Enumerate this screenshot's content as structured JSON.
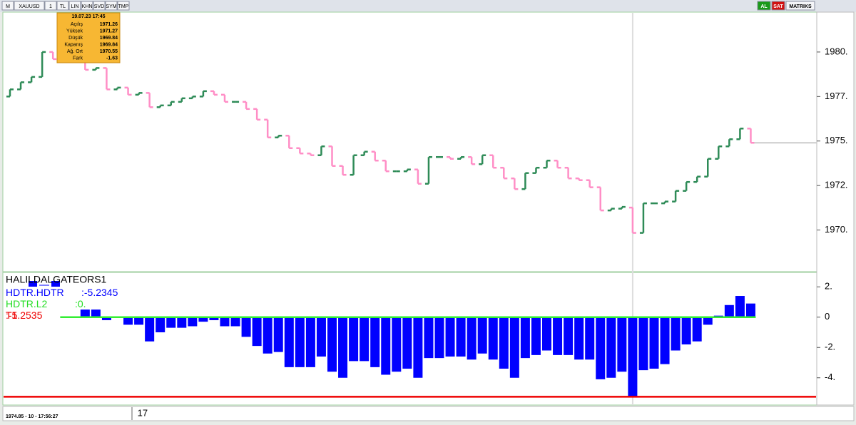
{
  "toolbar": {
    "left": [
      "M",
      "XAUUSD",
      "1",
      "TL",
      "LIN",
      "KHN",
      "SVD",
      "SYM",
      "TMP"
    ],
    "right": [
      "AL",
      "SAT",
      "MATRIKS"
    ]
  },
  "tooltip": {
    "date": "19.07.23 17:45",
    "rows": [
      [
        "Açılış",
        "1971.26"
      ],
      [
        "Yüksek",
        "1971.27"
      ],
      [
        "Düşük",
        "1969.84"
      ],
      [
        "Kapanış",
        "1969.84"
      ],
      [
        "Ağ. Ort",
        "1970.55"
      ],
      [
        "Fark",
        "-1.63"
      ]
    ]
  },
  "status": "1974.85 - 10 - 17:56:27",
  "chart_data": [
    {
      "type": "ohlc",
      "up_color": "#2e8b57",
      "down_color": "#ff8ec6",
      "categories": [
        null,
        null,
        null,
        null,
        null,
        null,
        null,
        null,
        null,
        null,
        null,
        null,
        "17",
        null,
        null,
        null,
        null,
        null,
        null,
        null,
        null,
        null,
        null,
        null,
        null,
        null,
        null,
        null,
        null,
        null,
        null,
        null,
        null,
        null,
        null,
        null,
        null,
        null,
        null,
        null,
        null,
        null,
        null,
        null,
        null,
        null,
        null,
        null,
        null,
        null,
        null,
        null,
        null,
        null,
        null,
        null,
        null,
        null,
        null,
        null,
        null,
        null,
        null,
        null,
        null,
        null,
        null,
        null,
        null,
        null
      ],
      "open": [
        1977.5,
        1977.9,
        1978.3,
        1978.6,
        1980.0,
        1979.6,
        1979.7,
        1979.8,
        1979.0,
        1979.1,
        1977.9,
        1978.0,
        1977.6,
        1977.7,
        1976.9,
        1977.0,
        1977.2,
        1977.4,
        1977.5,
        1977.8,
        1977.6,
        1977.2,
        1977.2,
        1976.8,
        1976.2,
        1975.2,
        1975.3,
        1974.6,
        1974.3,
        1974.2,
        1974.7,
        1973.6,
        1973.1,
        1974.2,
        1974.4,
        1973.9,
        1973.3,
        1973.3,
        1973.4,
        1972.6,
        1974.1,
        1974.1,
        1974.0,
        1974.1,
        1973.7,
        1974.2,
        1973.5,
        1972.9,
        1972.3,
        1973.2,
        1973.5,
        1973.9,
        1973.5,
        1972.9,
        1972.8,
        1972.4,
        1971.1,
        1971.2,
        1971.26,
        1969.84,
        1971.5,
        1971.5,
        1971.6,
        1972.2,
        1972.7,
        1973.0,
        1974.0,
        1974.7,
        1975.1,
        1975.7
      ],
      "close": [
        1977.9,
        1978.3,
        1978.6,
        1980.0,
        1979.6,
        1979.7,
        1979.8,
        1979.0,
        1979.1,
        1977.9,
        1978.0,
        1977.6,
        1977.7,
        1976.9,
        1977.0,
        1977.2,
        1977.4,
        1977.5,
        1977.8,
        1977.6,
        1977.2,
        1977.2,
        1976.8,
        1976.2,
        1975.2,
        1975.3,
        1974.6,
        1974.3,
        1974.2,
        1974.7,
        1973.6,
        1973.1,
        1974.2,
        1974.4,
        1973.9,
        1973.3,
        1973.3,
        1973.4,
        1972.6,
        1974.1,
        1974.1,
        1974.0,
        1974.1,
        1973.7,
        1974.2,
        1973.5,
        1972.9,
        1972.3,
        1973.2,
        1973.5,
        1973.9,
        1973.5,
        1972.9,
        1972.8,
        1972.4,
        1971.1,
        1971.2,
        1971.3,
        1969.84,
        1971.5,
        1971.5,
        1971.6,
        1972.2,
        1972.7,
        1973.0,
        1974.0,
        1974.7,
        1975.1,
        1975.7,
        1974.9
      ],
      "ylim": [
        1967.7,
        1982.2
      ],
      "yticks": [
        {
          "value": 1970,
          "label": "1970."
        },
        {
          "value": 1972.5,
          "label": "1972."
        },
        {
          "value": 1975,
          "label": "1975."
        },
        {
          "value": 1977.5,
          "label": "1977."
        },
        {
          "value": 1980,
          "label": "1980."
        }
      ]
    },
    {
      "type": "bar",
      "title": "HALILDALGATEORS1",
      "series": [
        {
          "name": "HDTR.HDTR",
          "color": "#0000ff",
          "values": [
            null,
            null,
            null,
            null,
            null,
            null,
            null,
            0.5,
            0.5,
            -0.2,
            0,
            -0.5,
            -0.5,
            -1.6,
            -1.0,
            -0.7,
            -0.7,
            -0.6,
            -0.3,
            -0.2,
            -0.6,
            -0.6,
            -1.3,
            -1.9,
            -2.4,
            -2.3,
            -3.3,
            -3.3,
            -3.3,
            -2.6,
            -3.6,
            -4.0,
            -2.9,
            -2.9,
            -3.3,
            -3.8,
            -3.6,
            -3.4,
            -4.0,
            -2.7,
            -2.7,
            -2.6,
            -2.6,
            -2.8,
            -2.4,
            -2.8,
            -3.4,
            -4.0,
            -2.7,
            -2.5,
            -2.2,
            -2.5,
            -2.5,
            -2.8,
            -2.8,
            -4.1,
            -4.0,
            -3.6,
            -5.2345,
            -3.5,
            -3.4,
            -3.1,
            -2.2,
            -1.8,
            -1.6,
            -0.5,
            0.1,
            0.8,
            1.4,
            0.9
          ]
        }
      ],
      "levels": [
        {
          "name": "HDTR.L2",
          "value": 0,
          "label": "0.",
          "color": "#33ee33"
        },
        {
          "name": "T1",
          "value": -5.2535,
          "color": "#ee0000"
        }
      ],
      "ylim": [
        -5.8,
        2.86
      ],
      "yticks": [
        {
          "value": 2,
          "label": "2."
        },
        0,
        {
          "value": -2,
          "label": "-2."
        },
        {
          "value": -4,
          "label": "-4."
        }
      ]
    }
  ]
}
